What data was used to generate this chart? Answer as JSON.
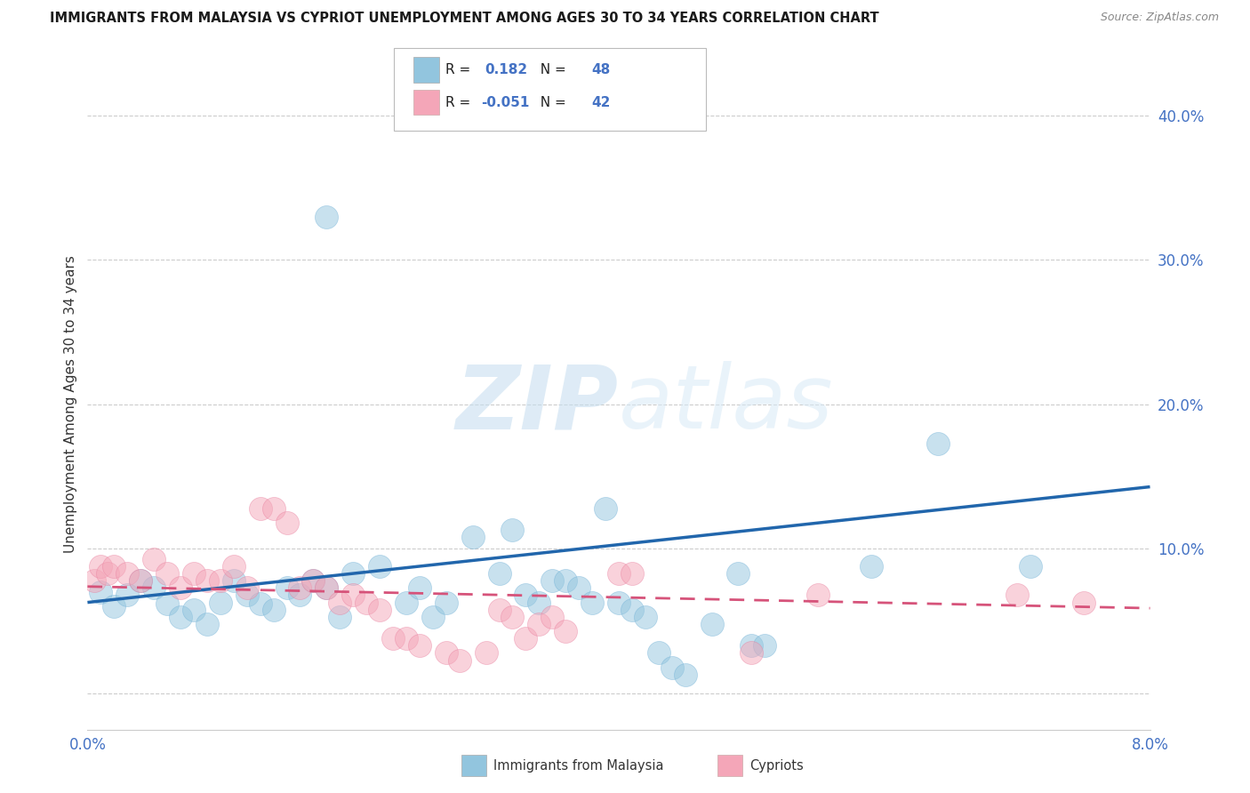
{
  "title": "IMMIGRANTS FROM MALAYSIA VS CYPRIOT UNEMPLOYMENT AMONG AGES 30 TO 34 YEARS CORRELATION CHART",
  "source": "Source: ZipAtlas.com",
  "ylabel": "Unemployment Among Ages 30 to 34 years",
  "watermark_zip": "ZIP",
  "watermark_atlas": "atlas",
  "x_min": 0.0,
  "x_max": 0.08,
  "y_min": -0.025,
  "y_max": 0.425,
  "y_ticks": [
    0.0,
    0.1,
    0.2,
    0.3,
    0.4
  ],
  "y_tick_labels": [
    "",
    "10.0%",
    "20.0%",
    "30.0%",
    "40.0%"
  ],
  "blue_color": "#92c5de",
  "pink_color": "#f4a6b8",
  "blue_edge_color": "#6baed6",
  "pink_edge_color": "#e8799a",
  "blue_line_color": "#2166ac",
  "pink_line_color": "#d6537a",
  "blue_scatter": [
    [
      0.001,
      0.07
    ],
    [
      0.002,
      0.06
    ],
    [
      0.003,
      0.068
    ],
    [
      0.004,
      0.078
    ],
    [
      0.005,
      0.073
    ],
    [
      0.006,
      0.062
    ],
    [
      0.007,
      0.053
    ],
    [
      0.008,
      0.058
    ],
    [
      0.009,
      0.048
    ],
    [
      0.01,
      0.063
    ],
    [
      0.011,
      0.078
    ],
    [
      0.012,
      0.068
    ],
    [
      0.013,
      0.062
    ],
    [
      0.014,
      0.058
    ],
    [
      0.015,
      0.073
    ],
    [
      0.016,
      0.068
    ],
    [
      0.017,
      0.078
    ],
    [
      0.018,
      0.073
    ],
    [
      0.019,
      0.053
    ],
    [
      0.02,
      0.083
    ],
    [
      0.022,
      0.088
    ],
    [
      0.024,
      0.063
    ],
    [
      0.025,
      0.073
    ],
    [
      0.026,
      0.053
    ],
    [
      0.027,
      0.063
    ],
    [
      0.029,
      0.108
    ],
    [
      0.031,
      0.083
    ],
    [
      0.032,
      0.113
    ],
    [
      0.033,
      0.068
    ],
    [
      0.034,
      0.063
    ],
    [
      0.035,
      0.078
    ],
    [
      0.036,
      0.078
    ],
    [
      0.037,
      0.073
    ],
    [
      0.038,
      0.063
    ],
    [
      0.039,
      0.128
    ],
    [
      0.04,
      0.063
    ],
    [
      0.041,
      0.058
    ],
    [
      0.042,
      0.053
    ],
    [
      0.043,
      0.028
    ],
    [
      0.044,
      0.018
    ],
    [
      0.045,
      0.013
    ],
    [
      0.047,
      0.048
    ],
    [
      0.049,
      0.083
    ],
    [
      0.05,
      0.033
    ],
    [
      0.051,
      0.033
    ],
    [
      0.059,
      0.088
    ],
    [
      0.064,
      0.173
    ],
    [
      0.071,
      0.088
    ]
  ],
  "pink_scatter": [
    [
      0.0005,
      0.078
    ],
    [
      0.001,
      0.088
    ],
    [
      0.0015,
      0.083
    ],
    [
      0.002,
      0.088
    ],
    [
      0.003,
      0.083
    ],
    [
      0.004,
      0.078
    ],
    [
      0.005,
      0.093
    ],
    [
      0.006,
      0.083
    ],
    [
      0.007,
      0.073
    ],
    [
      0.008,
      0.083
    ],
    [
      0.009,
      0.078
    ],
    [
      0.01,
      0.078
    ],
    [
      0.011,
      0.088
    ],
    [
      0.012,
      0.073
    ],
    [
      0.013,
      0.128
    ],
    [
      0.014,
      0.128
    ],
    [
      0.015,
      0.118
    ],
    [
      0.016,
      0.073
    ],
    [
      0.017,
      0.078
    ],
    [
      0.018,
      0.073
    ],
    [
      0.019,
      0.063
    ],
    [
      0.02,
      0.068
    ],
    [
      0.021,
      0.063
    ],
    [
      0.022,
      0.058
    ],
    [
      0.023,
      0.038
    ],
    [
      0.024,
      0.038
    ],
    [
      0.025,
      0.033
    ],
    [
      0.027,
      0.028
    ],
    [
      0.028,
      0.023
    ],
    [
      0.03,
      0.028
    ],
    [
      0.031,
      0.058
    ],
    [
      0.032,
      0.053
    ],
    [
      0.033,
      0.038
    ],
    [
      0.034,
      0.048
    ],
    [
      0.035,
      0.053
    ],
    [
      0.036,
      0.043
    ],
    [
      0.04,
      0.083
    ],
    [
      0.041,
      0.083
    ],
    [
      0.05,
      0.028
    ],
    [
      0.055,
      0.068
    ],
    [
      0.07,
      0.068
    ],
    [
      0.075,
      0.063
    ]
  ],
  "blue_outlier": [
    0.018,
    0.33
  ],
  "blue_line_x": [
    0.0,
    0.08
  ],
  "blue_line_y": [
    0.063,
    0.143
  ],
  "pink_line_x": [
    0.0,
    0.08
  ],
  "pink_line_y": [
    0.074,
    0.059
  ],
  "legend_blue_r": "0.182",
  "legend_blue_n": "48",
  "legend_pink_r": "-0.051",
  "legend_pink_n": "42",
  "tick_color": "#4472c4",
  "label_color": "#333333",
  "grid_color": "#cccccc",
  "scatter_alpha": 0.5,
  "scatter_size": 350
}
